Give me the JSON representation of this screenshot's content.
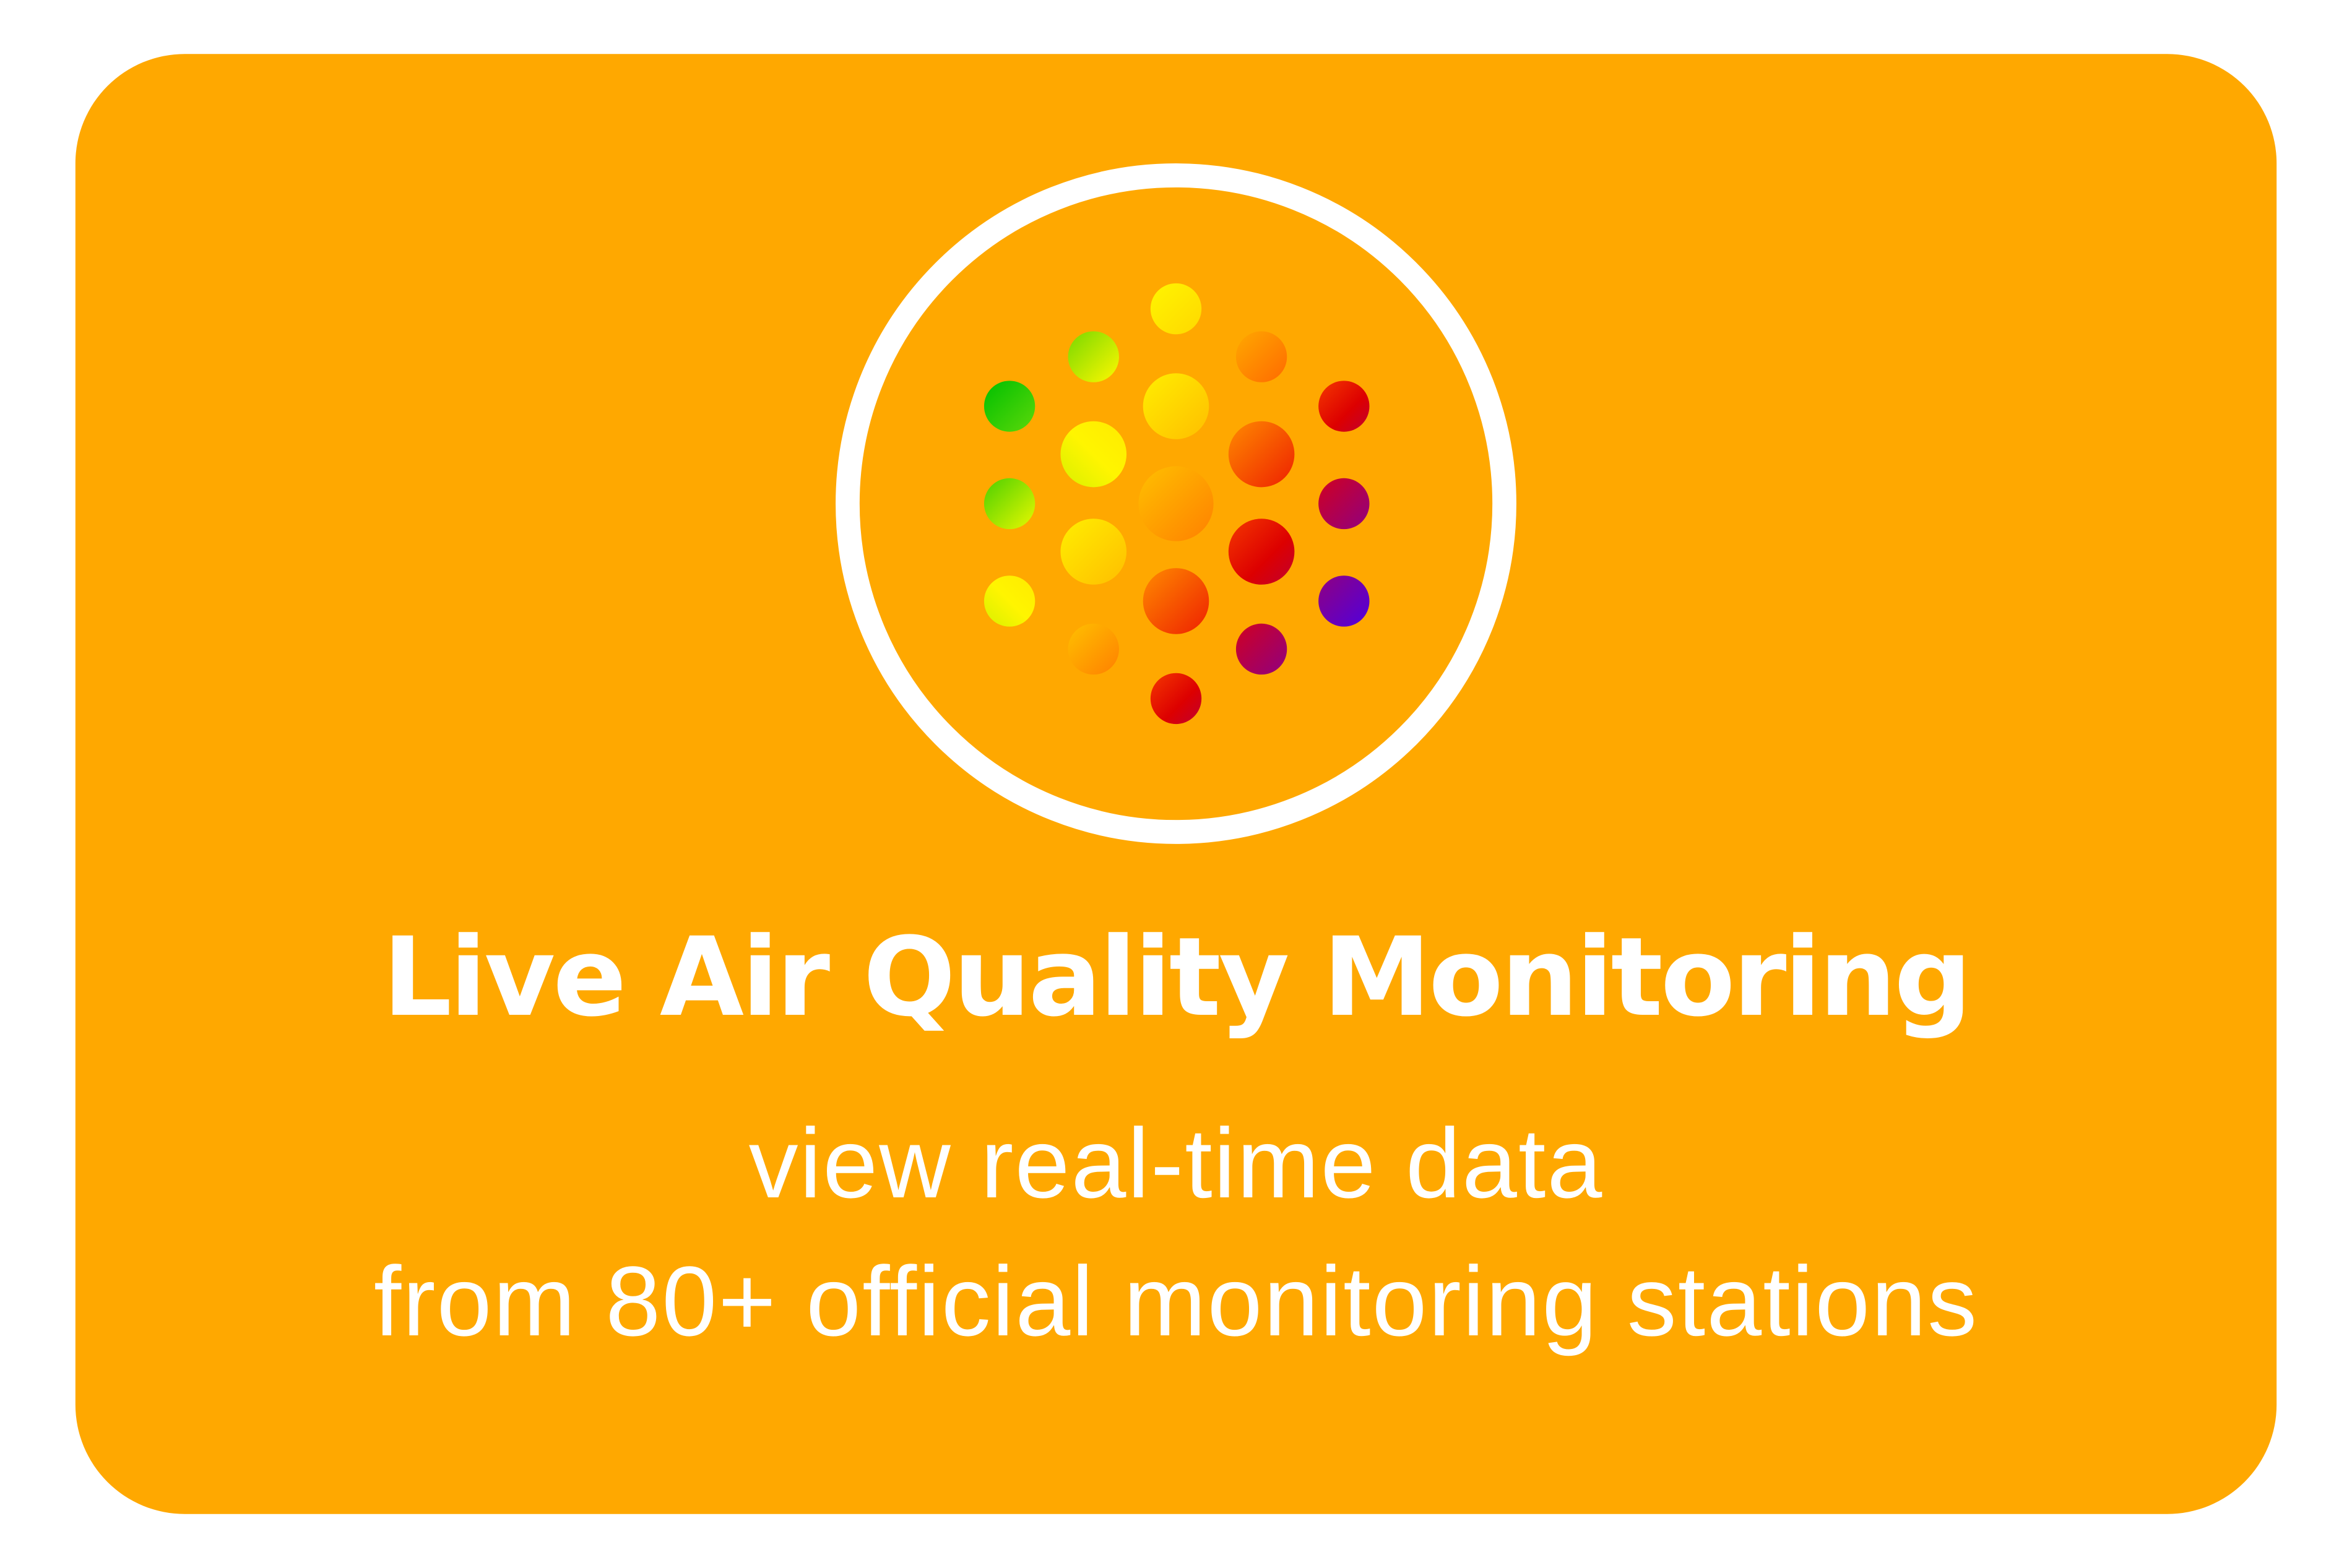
{
  "card": {
    "background_color": "#FFA800",
    "title": "Live Air Quality Monitoring",
    "subtitle_line1": "view real-time data",
    "subtitle_line2": "from 80+ official monitoring stations"
  },
  "icon": {
    "name": "air-quality-dots-icon",
    "ring_color": "#ffffff",
    "dot_colors": [
      "#00C000",
      "#FFF200",
      "#FFD000",
      "#FF8000",
      "#DD0000",
      "#9A0070",
      "#5500DD"
    ]
  }
}
